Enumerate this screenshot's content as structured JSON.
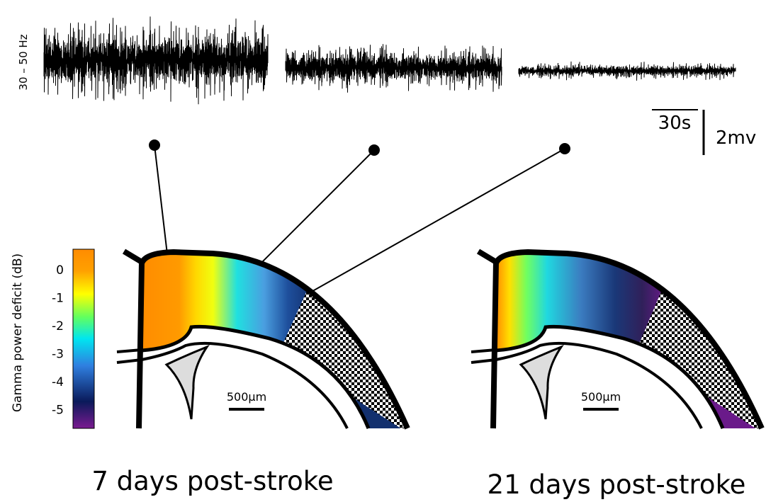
{
  "trace_band": "30 – 50 Hz",
  "scale_bar": {
    "time": "30s",
    "voltage": "2mv"
  },
  "colorbar": {
    "label": "Gamma power deficit (dB)",
    "ticks": [
      "0",
      "-1",
      "-2",
      "-3",
      "-4",
      "-5"
    ]
  },
  "panels": [
    {
      "scale": "500µm",
      "caption": "7 days post-stroke"
    },
    {
      "scale": "500µm",
      "caption": "21 days post-stroke"
    }
  ]
}
